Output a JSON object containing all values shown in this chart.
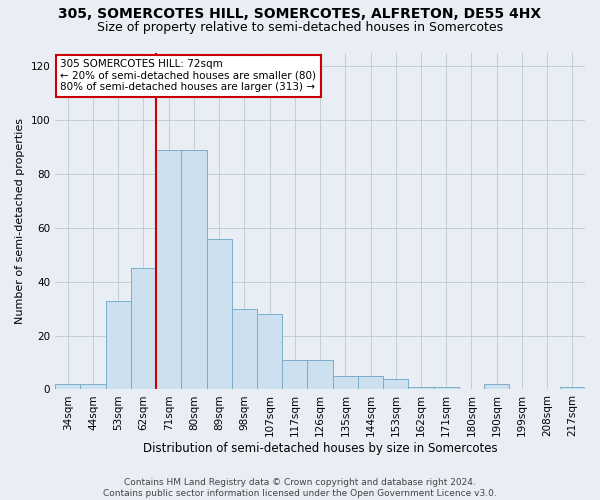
{
  "title": "305, SOMERCOTES HILL, SOMERCOTES, ALFRETON, DE55 4HX",
  "subtitle": "Size of property relative to semi-detached houses in Somercotes",
  "xlabel": "Distribution of semi-detached houses by size in Somercotes",
  "ylabel": "Number of semi-detached properties",
  "categories": [
    "34sqm",
    "44sqm",
    "53sqm",
    "62sqm",
    "71sqm",
    "80sqm",
    "89sqm",
    "98sqm",
    "107sqm",
    "117sqm",
    "126sqm",
    "135sqm",
    "144sqm",
    "153sqm",
    "162sqm",
    "171sqm",
    "180sqm",
    "190sqm",
    "199sqm",
    "208sqm",
    "217sqm"
  ],
  "values": [
    2,
    2,
    33,
    45,
    89,
    89,
    56,
    30,
    28,
    11,
    11,
    5,
    5,
    4,
    1,
    1,
    0,
    2,
    0,
    0,
    1
  ],
  "bar_color": "#cde0ef",
  "bar_edge_color": "#7aafc9",
  "redline_x": 4.0,
  "annotation_text_line1": "305 SOMERCOTES HILL: 72sqm",
  "annotation_text_line2": "← 20% of semi-detached houses are smaller (80)",
  "annotation_text_line3": "80% of semi-detached houses are larger (313) →",
  "ylim": [
    0,
    125
  ],
  "yticks": [
    0,
    20,
    40,
    60,
    80,
    100,
    120
  ],
  "footer_line1": "Contains HM Land Registry data © Crown copyright and database right 2024.",
  "footer_line2": "Contains public sector information licensed under the Open Government Licence v3.0.",
  "background_color": "#e8eef4",
  "plot_background_color": "#e8eef4",
  "grid_color": "#c0c8d0",
  "redline_color": "#cc0000",
  "annotation_box_facecolor": "#ffffff",
  "annotation_box_edgecolor": "#cc0000",
  "title_fontsize": 10,
  "subtitle_fontsize": 9,
  "xlabel_fontsize": 8.5,
  "ylabel_fontsize": 8,
  "tick_fontsize": 7.5,
  "annotation_fontsize": 7.5,
  "footer_fontsize": 6.5
}
